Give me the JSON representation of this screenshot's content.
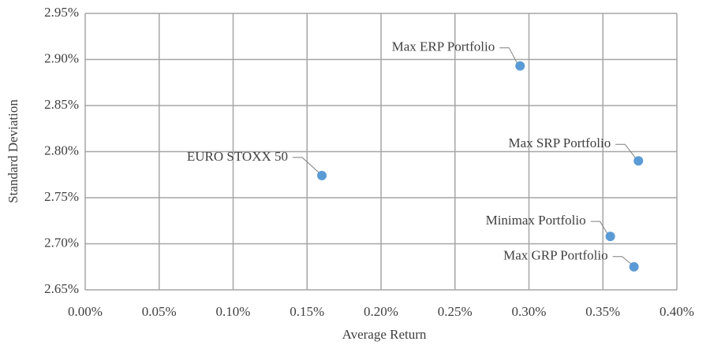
{
  "chart_data": {
    "type": "scatter",
    "x_label": "Average Return",
    "y_label": "Standard Deviation",
    "series": [
      {
        "color": "#5b9bd5",
        "labels": [
          "Max ERP Portfolio",
          "Max SRP Portfolio",
          "EURO STOXX 50",
          "Minimax Portfolio",
          "Max GRP Portfolio"
        ],
        "x": [
          0.294,
          0.374,
          0.16,
          0.355,
          0.371
        ],
        "values": [
          2.893,
          2.79,
          2.774,
          2.708,
          2.675
        ]
      }
    ],
    "xlim": [
      0,
      0.4
    ],
    "xticks": [
      {
        "value": 0,
        "label": "0.00%"
      },
      {
        "value": 0.05,
        "label": "0.05%"
      },
      {
        "value": 0.1,
        "label": "0.10%"
      },
      {
        "value": 0.15,
        "label": "0.15%"
      },
      {
        "value": 0.2,
        "label": "0.20%"
      },
      {
        "value": 0.25,
        "label": "0.25%"
      },
      {
        "value": 0.3,
        "label": "0.30%"
      },
      {
        "value": 0.35,
        "label": "0.35%"
      },
      {
        "value": 0.4,
        "label": "0.40%"
      }
    ],
    "ylim": [
      2.65,
      2.95
    ],
    "yticks": [
      {
        "value": 2.65,
        "label": "2.65%"
      },
      {
        "value": 2.7,
        "label": "2.70%"
      },
      {
        "value": 2.75,
        "label": "2.75%"
      },
      {
        "value": 2.8,
        "label": "2.80%"
      },
      {
        "value": 2.85,
        "label": "2.85%"
      },
      {
        "value": 2.9,
        "label": "2.90%"
      },
      {
        "value": 2.95,
        "label": "2.95%"
      }
    ],
    "grid": true
  }
}
